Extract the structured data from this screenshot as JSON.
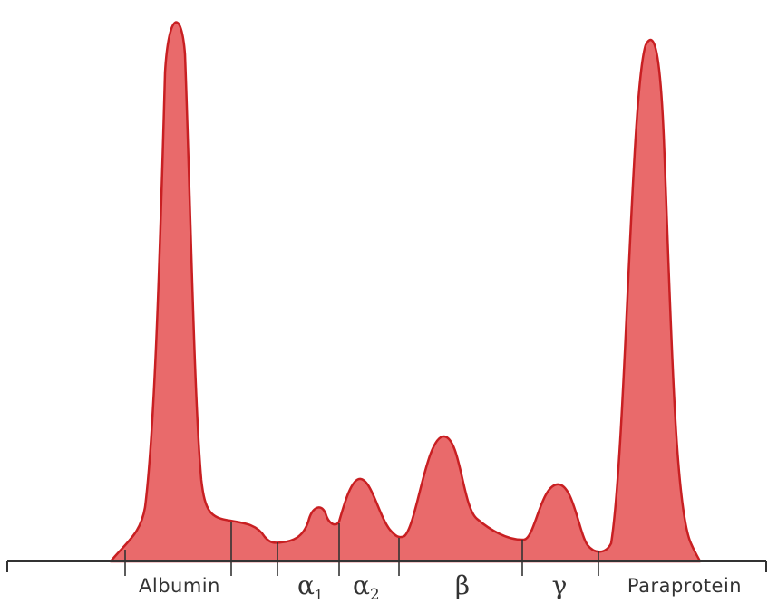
{
  "chart_data": {
    "type": "area",
    "title": "",
    "xlabel": "",
    "ylabel": "",
    "grid": false,
    "legend": "none",
    "colors": {
      "fill": "#e96a6b",
      "stroke": "#c81f22",
      "axis": "#333333",
      "text": "#333333"
    },
    "regions": [
      {
        "id": "albumin",
        "label": "Albumin",
        "sub": ""
      },
      {
        "id": "alpha1",
        "label": "α",
        "sub": "1"
      },
      {
        "id": "alpha2",
        "label": "α",
        "sub": "2"
      },
      {
        "id": "beta",
        "label": "β",
        "sub": ""
      },
      {
        "id": "gamma",
        "label": "γ",
        "sub": ""
      },
      {
        "id": "paraprotein",
        "label": "Paraprotein",
        "sub": ""
      }
    ],
    "peaks": [
      {
        "region": "albumin",
        "relative_height": 1.0
      },
      {
        "region": "alpha1",
        "relative_height": 0.09
      },
      {
        "region": "alpha2",
        "relative_height": 0.15
      },
      {
        "region": "beta",
        "relative_height": 0.22
      },
      {
        "region": "gamma",
        "relative_height": 0.14
      },
      {
        "region": "paraprotein",
        "relative_height": 0.94
      }
    ]
  }
}
